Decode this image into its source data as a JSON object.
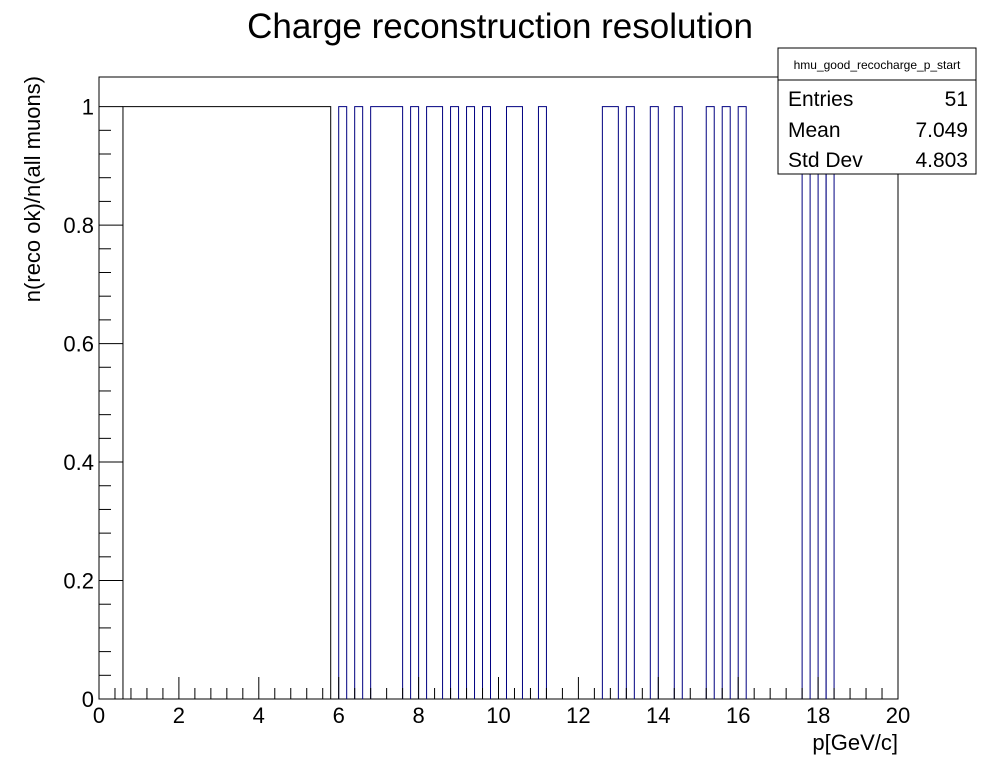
{
  "chart_data": {
    "type": "bar",
    "style": "step-histogram",
    "title": "Charge reconstruction resolution",
    "xlabel": "p[GeV/c]",
    "ylabel": "n(reco ok)/n(all muons)",
    "xlim": [
      0,
      20
    ],
    "ylim": [
      0,
      1.05
    ],
    "bin_width": 0.2,
    "x_ticks": [
      "0",
      "2",
      "4",
      "6",
      "8",
      "10",
      "12",
      "14",
      "16",
      "18",
      "20"
    ],
    "y_ticks": [
      "0",
      "0.2",
      "0.4",
      "0.6",
      "0.8",
      "1"
    ],
    "bins": [
      {
        "low": 0.6,
        "high": 5.8,
        "value": 1
      },
      {
        "low": 6.0,
        "high": 6.2,
        "value": 1
      },
      {
        "low": 6.4,
        "high": 6.6,
        "value": 1
      },
      {
        "low": 6.8,
        "high": 7.6,
        "value": 1
      },
      {
        "low": 7.8,
        "high": 8.0,
        "value": 1
      },
      {
        "low": 8.2,
        "high": 8.6,
        "value": 1
      },
      {
        "low": 8.8,
        "high": 9.0,
        "value": 1
      },
      {
        "low": 9.2,
        "high": 9.4,
        "value": 1
      },
      {
        "low": 9.6,
        "high": 9.8,
        "value": 1
      },
      {
        "low": 10.2,
        "high": 10.6,
        "value": 1
      },
      {
        "low": 11.0,
        "high": 11.2,
        "value": 1
      },
      {
        "low": 12.6,
        "high": 13.0,
        "value": 1
      },
      {
        "low": 13.2,
        "high": 13.4,
        "value": 1
      },
      {
        "low": 13.8,
        "high": 14.0,
        "value": 1
      },
      {
        "low": 14.4,
        "high": 14.6,
        "value": 1
      },
      {
        "low": 15.2,
        "high": 15.4,
        "value": 1
      },
      {
        "low": 15.6,
        "high": 15.8,
        "value": 1
      },
      {
        "low": 16.0,
        "high": 16.2,
        "value": 1
      },
      {
        "low": 17.6,
        "high": 17.8,
        "value": 1
      },
      {
        "low": 18.0,
        "high": 18.2,
        "value": 1
      },
      {
        "low": 18.2,
        "high": 18.4,
        "value": 1
      }
    ],
    "grid": false,
    "stats_box": {
      "placement": "top-right",
      "name": "hmu_good_recocharge_p_start",
      "entries_label": "Entries",
      "entries": "51",
      "mean_label": "Mean",
      "mean": "7.049",
      "stddev_label": "Std Dev",
      "stddev": "4.803"
    },
    "colors": {
      "line": "#000080",
      "frame": "#000000",
      "background": "#ffffff"
    }
  }
}
